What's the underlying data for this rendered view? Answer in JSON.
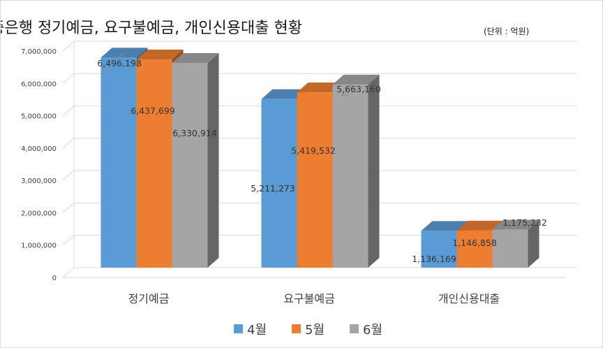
{
  "chart_data": {
    "type": "bar",
    "style": "3d-clustered-column",
    "title": "주요 시중은행 정기예금, 요구불예금, 개인신용대출 현황",
    "subtitle": "(단위 : 억원)",
    "xlabel": "",
    "ylabel": "",
    "categories": [
      "정기예금",
      "요구불예금",
      "개인신용대출"
    ],
    "series": [
      {
        "name": "4월",
        "values": [
          6496198,
          5211273,
          1136169
        ],
        "color": "#5b9bd5",
        "labels": [
          "6,496,198",
          "5,211,273",
          "1,136,169"
        ]
      },
      {
        "name": "5월",
        "values": [
          6437699,
          5419532,
          1146858
        ],
        "color": "#ed7d31",
        "labels": [
          "6,437,699",
          "5,419,532",
          "1,146,858"
        ]
      },
      {
        "name": "6월",
        "values": [
          6330914,
          5663160,
          1175232
        ],
        "color": "#a5a5a5",
        "labels": [
          "6,330,914",
          "5,663,160",
          "1,175,232"
        ]
      }
    ],
    "ylim": [
      0,
      7000000
    ],
    "yticks": [
      0,
      1000000,
      2000000,
      3000000,
      4000000,
      5000000,
      6000000,
      7000000
    ],
    "ytick_labels": [
      "0",
      "1,000,000",
      "2,000,000",
      "3,000,000",
      "4,000,000",
      "5,000,000",
      "6,000,000",
      "7,000,000"
    ],
    "grid": true,
    "legend": "bottom"
  }
}
